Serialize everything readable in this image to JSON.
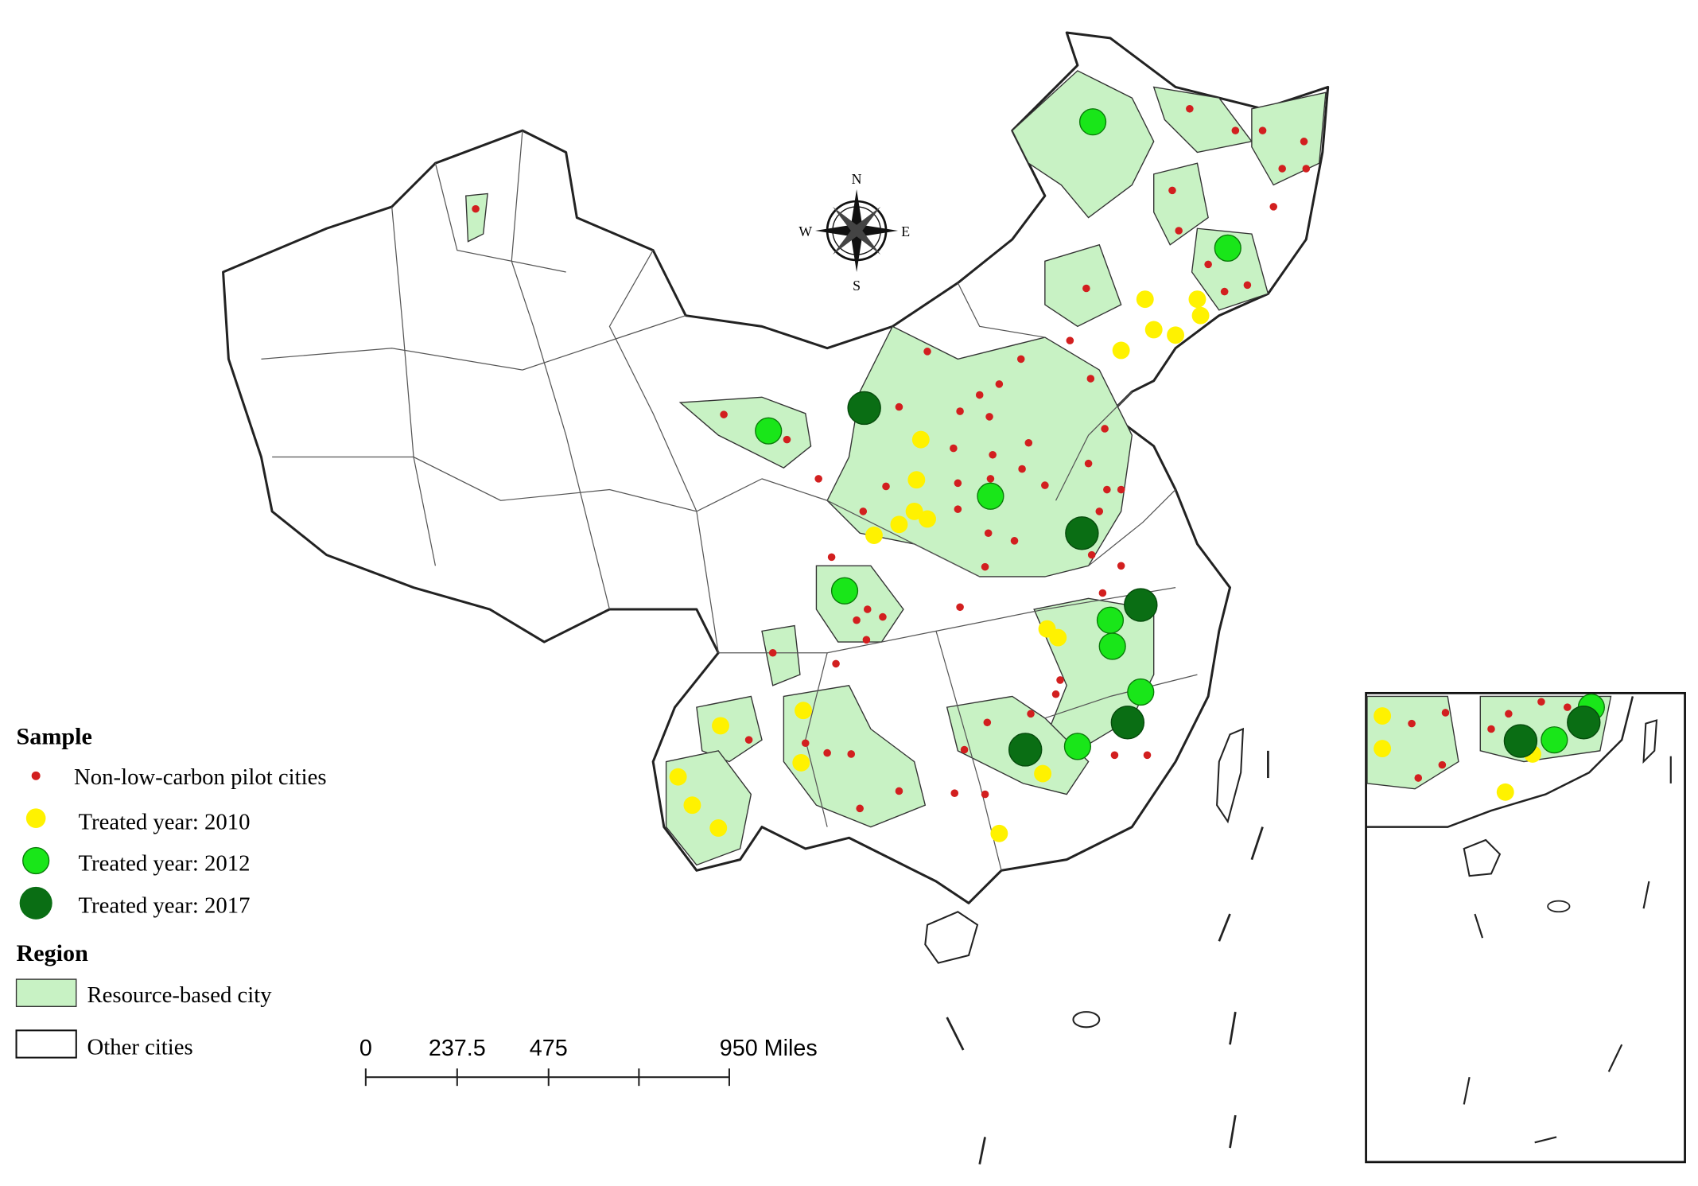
{
  "compass": {
    "north": "N",
    "south": "S",
    "east": "E",
    "west": "W"
  },
  "legend": {
    "sample_title": "Sample",
    "sample_items": [
      "Non-low-carbon pilot cities",
      "Treated year: 2010",
      "Treated year: 2012",
      "Treated year: 2017"
    ],
    "region_title": "Region",
    "region_items": [
      "Resource-based city",
      "Other cities"
    ]
  },
  "scale_bar": {
    "labels": [
      "0",
      "237.5",
      "475",
      "950 Miles"
    ]
  }
}
